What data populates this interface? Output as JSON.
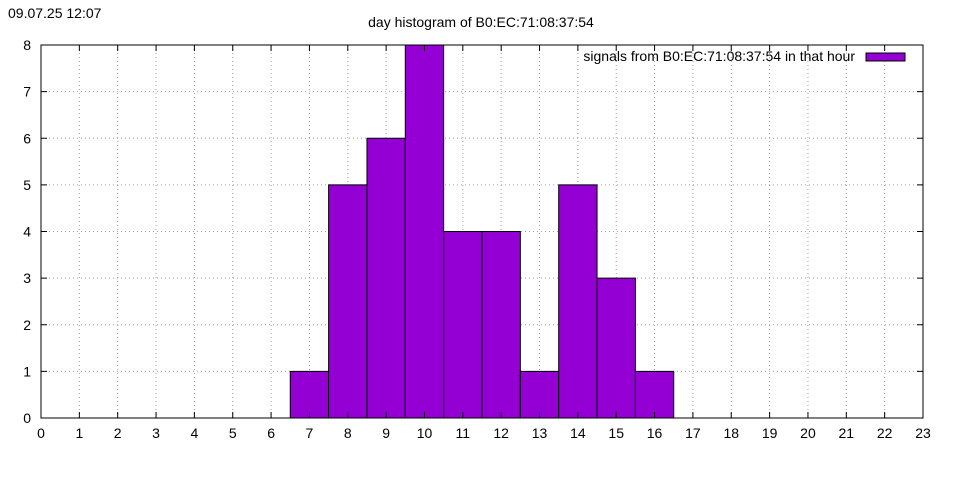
{
  "timestamp": "09.07.25 12:07",
  "chart_data": {
    "type": "bar",
    "title": "day histogram of B0:EC:71:08:37:54",
    "xlabel": "",
    "ylabel": "",
    "xlim": [
      0,
      23
    ],
    "ylim": [
      0,
      8
    ],
    "x_ticks": [
      0,
      1,
      2,
      3,
      4,
      5,
      6,
      7,
      8,
      9,
      10,
      11,
      12,
      13,
      14,
      15,
      16,
      17,
      18,
      19,
      20,
      21,
      22,
      23
    ],
    "y_ticks": [
      0,
      1,
      2,
      3,
      4,
      5,
      6,
      7,
      8
    ],
    "grid": true,
    "legend_position": "top-right",
    "series": [
      {
        "name": "signals from B0:EC:71:08:37:54 in that hour",
        "color": "#9400d3",
        "categories": [
          7,
          8,
          9,
          10,
          11,
          12,
          13,
          14,
          15,
          16
        ],
        "values": [
          1,
          5,
          6,
          8,
          4,
          4,
          1,
          5,
          3,
          1
        ]
      }
    ]
  }
}
